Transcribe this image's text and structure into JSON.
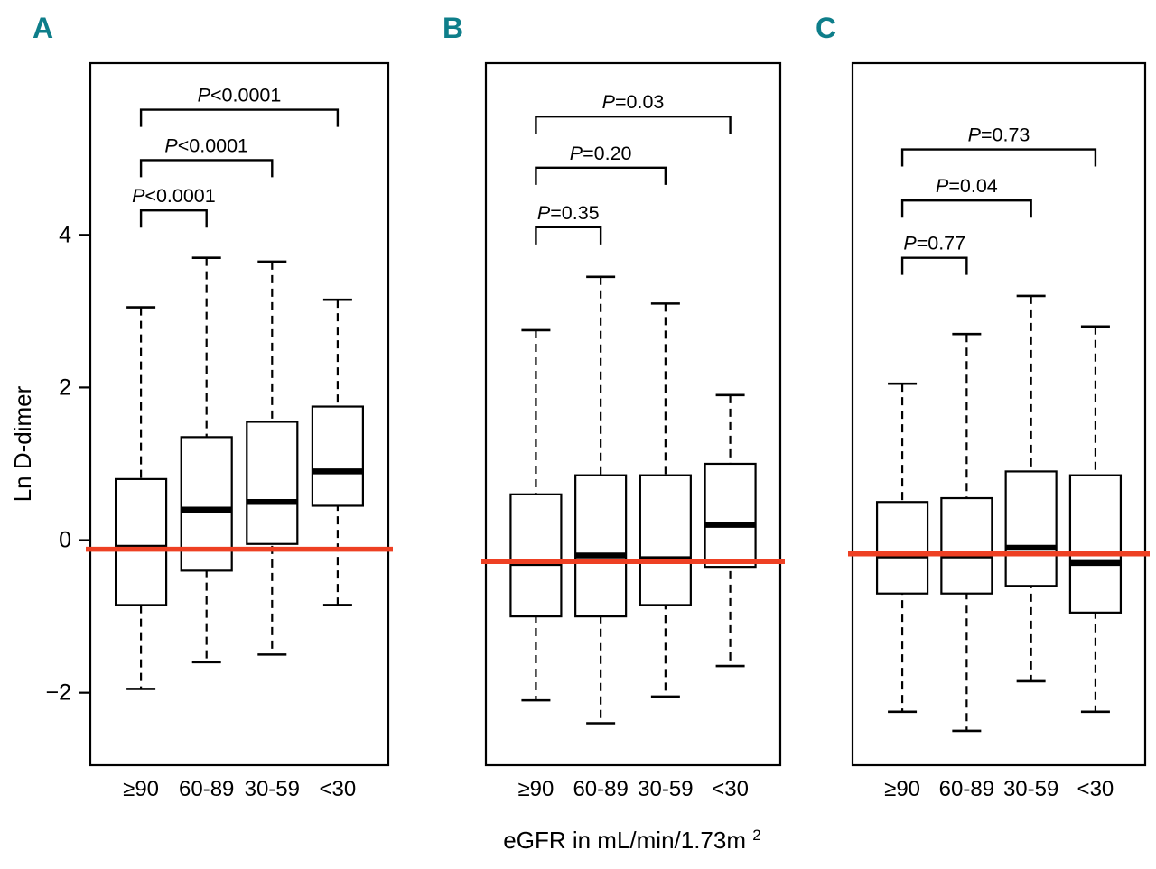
{
  "chart_data": {
    "type": "boxplot",
    "xlabel_base": "eGFR in mL/min/1.73m",
    "xlabel_sup": "2",
    "ylabel": "Ln D-dimer",
    "categories": [
      "≥90",
      "60-89",
      "30-59",
      "<30"
    ],
    "yticks": [
      -2,
      0,
      2,
      4
    ],
    "ylim": [
      -2.95,
      6.25
    ],
    "grid": false,
    "colors": {
      "reference_line": "#ee4023",
      "panel_label": "#0e7e8a",
      "box_stroke": "#000000"
    },
    "panels": [
      {
        "label": "A",
        "show_yaxis": true,
        "reference_line": -0.12,
        "boxes": [
          {
            "whisker_low": -1.95,
            "q1": -0.85,
            "median": -0.1,
            "q3": 0.8,
            "whisker_high": 3.05
          },
          {
            "whisker_low": -1.6,
            "q1": -0.4,
            "median": 0.4,
            "q3": 1.35,
            "whisker_high": 3.7
          },
          {
            "whisker_low": -1.5,
            "q1": -0.05,
            "median": 0.5,
            "q3": 1.55,
            "whisker_high": 3.65
          },
          {
            "whisker_low": -0.85,
            "q1": 0.45,
            "median": 0.9,
            "q3": 1.75,
            "whisker_high": 3.15
          }
        ],
        "comparisons": [
          {
            "from": 0,
            "to": 1,
            "label": "P<0.0001",
            "y": 4.32
          },
          {
            "from": 0,
            "to": 2,
            "label": "P<0.0001",
            "y": 4.98
          },
          {
            "from": 0,
            "to": 3,
            "label": "P<0.0001",
            "y": 5.64
          }
        ]
      },
      {
        "label": "B",
        "show_yaxis": false,
        "reference_line": -0.28,
        "boxes": [
          {
            "whisker_low": -2.1,
            "q1": -1.0,
            "median": -0.3,
            "q3": 0.6,
            "whisker_high": 2.75
          },
          {
            "whisker_low": -2.4,
            "q1": -1.0,
            "median": -0.2,
            "q3": 0.85,
            "whisker_high": 3.45
          },
          {
            "whisker_low": -2.05,
            "q1": -0.85,
            "median": -0.25,
            "q3": 0.85,
            "whisker_high": 3.1
          },
          {
            "whisker_low": -1.65,
            "q1": -0.35,
            "median": 0.2,
            "q3": 1.0,
            "whisker_high": 1.9
          }
        ],
        "comparisons": [
          {
            "from": 0,
            "to": 1,
            "label": "P=0.35",
            "y": 4.1
          },
          {
            "from": 0,
            "to": 2,
            "label": "P=0.20",
            "y": 4.88
          },
          {
            "from": 0,
            "to": 3,
            "label": "P=0.03",
            "y": 5.55
          }
        ]
      },
      {
        "label": "C",
        "show_yaxis": false,
        "reference_line": -0.18,
        "boxes": [
          {
            "whisker_low": -2.25,
            "q1": -0.7,
            "median": -0.2,
            "q3": 0.5,
            "whisker_high": 2.05
          },
          {
            "whisker_low": -2.5,
            "q1": -0.7,
            "median": -0.2,
            "q3": 0.55,
            "whisker_high": 2.7
          },
          {
            "whisker_low": -1.85,
            "q1": -0.6,
            "median": -0.1,
            "q3": 0.9,
            "whisker_high": 3.2
          },
          {
            "whisker_low": -2.25,
            "q1": -0.95,
            "median": -0.3,
            "q3": 0.85,
            "whisker_high": 2.8
          }
        ],
        "comparisons": [
          {
            "from": 0,
            "to": 1,
            "label": "P=0.77",
            "y": 3.7
          },
          {
            "from": 0,
            "to": 2,
            "label": "P=0.04",
            "y": 4.45
          },
          {
            "from": 0,
            "to": 3,
            "label": "P=0.73",
            "y": 5.12
          }
        ]
      }
    ]
  }
}
